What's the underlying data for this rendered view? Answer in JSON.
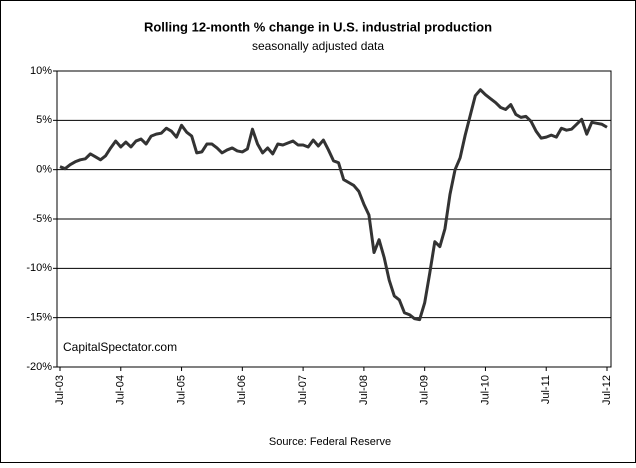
{
  "chart_data": {
    "type": "line",
    "title": "Rolling 12-month %  change in U.S. industrial production",
    "subtitle": "seasonally adjusted data",
    "annotation": "CapitalSpectator.com",
    "source": "Source: Federal Reserve",
    "categories": [
      "Jul-03",
      null,
      null,
      null,
      null,
      null,
      null,
      null,
      null,
      null,
      null,
      null,
      "Jul-04",
      null,
      null,
      null,
      null,
      null,
      null,
      null,
      null,
      null,
      null,
      null,
      "Jul-05",
      null,
      null,
      null,
      null,
      null,
      null,
      null,
      null,
      null,
      null,
      null,
      "Jul-06",
      null,
      null,
      null,
      null,
      null,
      null,
      null,
      null,
      null,
      null,
      null,
      "Jul-07",
      null,
      null,
      null,
      null,
      null,
      null,
      null,
      null,
      null,
      null,
      null,
      "Jul-08",
      null,
      null,
      null,
      null,
      null,
      null,
      null,
      null,
      null,
      null,
      null,
      "Jul-09",
      null,
      null,
      null,
      null,
      null,
      null,
      null,
      null,
      null,
      null,
      null,
      "Jul-10",
      null,
      null,
      null,
      null,
      null,
      null,
      null,
      null,
      null,
      null,
      null,
      "Jul-11",
      null,
      null,
      null,
      null,
      null,
      null,
      null,
      null,
      null,
      null,
      null,
      "Jul-12"
    ],
    "values": [
      0.3,
      0.1,
      0.5,
      0.8,
      1.0,
      1.1,
      1.6,
      1.3,
      1.0,
      1.4,
      2.2,
      2.9,
      2.3,
      2.8,
      2.3,
      2.9,
      3.1,
      2.6,
      3.4,
      3.6,
      3.7,
      4.2,
      3.9,
      3.3,
      4.5,
      3.8,
      3.4,
      1.7,
      1.8,
      2.6,
      2.6,
      2.2,
      1.7,
      2.0,
      2.2,
      1.9,
      1.8,
      2.1,
      4.1,
      2.6,
      1.7,
      2.2,
      1.6,
      2.6,
      2.5,
      2.7,
      2.9,
      2.5,
      2.5,
      2.3,
      3.0,
      2.4,
      3.0,
      2.0,
      0.9,
      0.7,
      -1.0,
      -1.3,
      -1.6,
      -2.2,
      -3.5,
      -4.6,
      -8.4,
      -7.1,
      -8.9,
      -11.2,
      -12.8,
      -13.2,
      -14.5,
      -14.7,
      -15.1,
      -15.2,
      -13.5,
      -10.5,
      -7.3,
      -7.8,
      -6.0,
      -2.5,
      0.0,
      1.2,
      3.5,
      5.5,
      7.5,
      8.1,
      7.6,
      7.2,
      6.8,
      6.3,
      6.1,
      6.6,
      5.6,
      5.3,
      5.4,
      4.9,
      3.9,
      3.2,
      3.3,
      3.5,
      3.3,
      4.2,
      4.0,
      4.1,
      4.6,
      5.1,
      3.6,
      4.8,
      4.7,
      4.6,
      4.3
    ],
    "color": "#333333",
    "ylim": [
      -20,
      10
    ],
    "yticks": [
      {
        "value": -20,
        "label": "-20%"
      },
      {
        "value": -15,
        "label": "-15%"
      },
      {
        "value": -10,
        "label": "-10%"
      },
      {
        "value": -5,
        "label": "-5%"
      },
      {
        "value": 0,
        "label": "0%"
      },
      {
        "value": 5,
        "label": "5%"
      },
      {
        "value": 10,
        "label": "10%"
      }
    ],
    "grid": true
  }
}
